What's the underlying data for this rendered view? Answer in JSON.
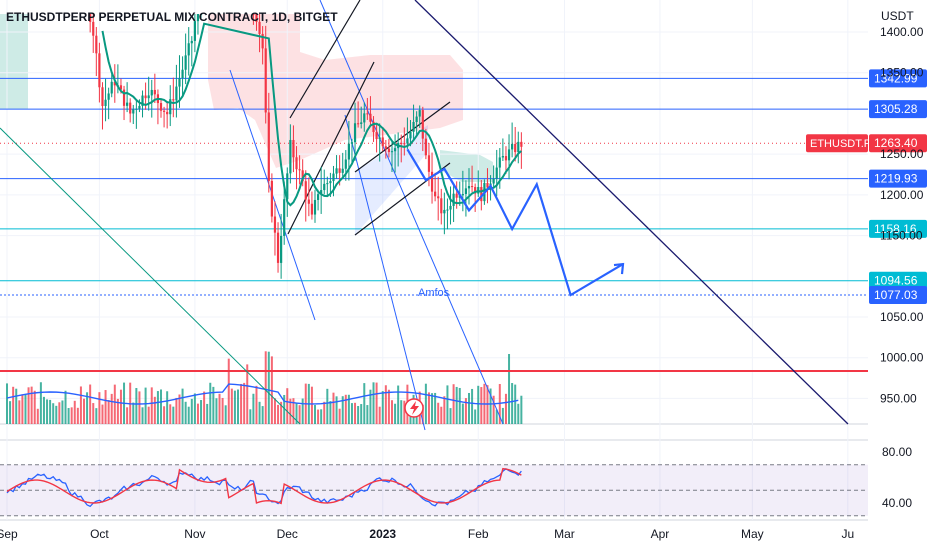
{
  "chart_data": {
    "type": "candlestick",
    "title": "ETHUSDTPERP PERPETUAL MIX CONTRACT, 1D, BITGET",
    "currency_label": "USDT",
    "price_axis": {
      "min": 915,
      "max": 1420,
      "ticks": [
        1400.0,
        1350.0,
        1250.0,
        1200.0,
        1150.0,
        1050.0,
        1000.0,
        950.0
      ],
      "tick_labels": [
        "1400.00",
        "1350.00",
        "1250.00",
        "1200.00",
        "1150.00",
        "1050.00",
        "1000.00",
        "950.00"
      ]
    },
    "time_axis": {
      "labels": [
        "Sep",
        "Oct",
        "Nov",
        "Dec",
        "2023",
        "Feb",
        "Mar",
        "Apr",
        "May",
        "Ju"
      ],
      "label_dates": [
        "2022-09-01",
        "2022-10-01",
        "2022-11-01",
        "2022-12-01",
        "2023-01-01",
        "2023-02-01",
        "2023-03-01",
        "2023-04-01",
        "2023-05-01",
        "2023-06-01"
      ]
    },
    "horizontal_levels": [
      {
        "label": "1342.99",
        "value": 1342.99,
        "color": "#2962ff"
      },
      {
        "label": "1305.28",
        "value": 1305.28,
        "color": "#2962ff"
      },
      {
        "label": "1219.93",
        "value": 1219.93,
        "color": "#2962ff"
      },
      {
        "label": "1158.16",
        "value": 1158.16,
        "color": "#00bcd4"
      },
      {
        "label": "1094.56",
        "value": 1094.56,
        "color": "#00bcd4"
      },
      {
        "label": "1077.03",
        "value": 1077.03,
        "color": "#2962ff",
        "dashed": true
      }
    ],
    "red_level": 983,
    "last_price": {
      "symbol": "ETHUSDT.P",
      "label": "1263.40",
      "value": 1263.4,
      "color": "#f23645"
    },
    "annotation": "Amfos",
    "projection_path": [
      {
        "date": "2023-01-09",
        "price": 1256
      },
      {
        "date": "2023-01-15",
        "price": 1218
      },
      {
        "date": "2023-01-21",
        "price": 1232
      },
      {
        "date": "2023-01-29",
        "price": 1181
      },
      {
        "date": "2023-02-05",
        "price": 1211
      },
      {
        "date": "2023-02-12",
        "price": 1158
      },
      {
        "date": "2023-02-20",
        "price": 1213
      },
      {
        "date": "2023-03-03",
        "price": 1077
      },
      {
        "date": "2023-03-20",
        "price": 1115
      }
    ],
    "rsi": {
      "ticks": [
        80.0,
        40.0
      ],
      "tick_labels": [
        "80.00",
        "40.00"
      ],
      "upper_band": 70,
      "lower_band": 30,
      "mid": 50
    },
    "colors": {
      "up": "#089981",
      "down": "#f23645",
      "ma": "#089981",
      "volume_ma": "#2962ff",
      "rsi": "#2962ff",
      "rsi_ma": "#f23645",
      "trendline": "#1a1a6e"
    }
  }
}
